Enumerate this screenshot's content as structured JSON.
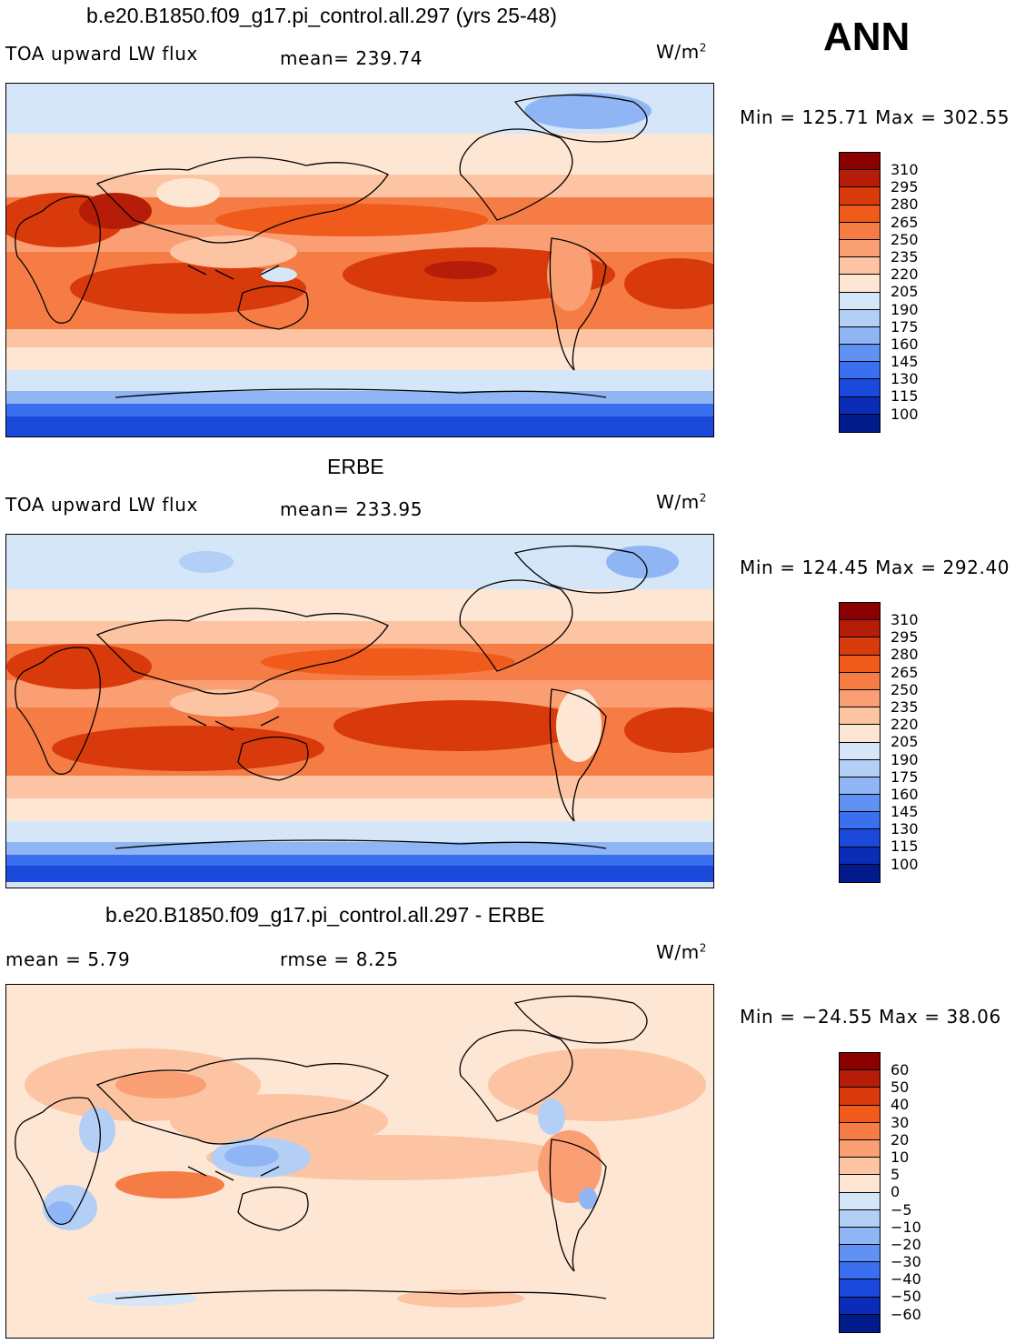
{
  "season": "ANN",
  "units_base": "W/m",
  "units_exp": "2",
  "panels": [
    {
      "title": "b.e20.B1850.f09_g17.pi_control.all.297 (yrs 25-48)",
      "left_label": "TOA upward LW flux",
      "stat_text": "mean=  239.74",
      "minmax": "Min = 125.71 Max = 302.55",
      "kind": "abs",
      "cb_labels": [
        "310",
        "295",
        "280",
        "265",
        "250",
        "235",
        "220",
        "205",
        "190",
        "175",
        "160",
        "145",
        "130",
        "115",
        "100"
      ]
    },
    {
      "title": "ERBE",
      "left_label": "TOA upward LW flux",
      "stat_text": "mean=  233.95",
      "minmax": "Min = 124.45 Max = 292.40",
      "kind": "abs",
      "cb_labels": [
        "310",
        "295",
        "280",
        "265",
        "250",
        "235",
        "220",
        "205",
        "190",
        "175",
        "160",
        "145",
        "130",
        "115",
        "100"
      ]
    },
    {
      "title": "b.e20.B1850.f09_g17.pi_control.all.297 - ERBE",
      "left_label": "mean =   5.79",
      "stat_text": "rmse =   8.25",
      "minmax": "Min = −24.55 Max =  38.06",
      "kind": "diff",
      "cb_labels": [
        "60",
        "50",
        "40",
        "30",
        "20",
        "10",
        "5",
        "0",
        "−5",
        "−10",
        "−20",
        "−30",
        "−40",
        "−50",
        "−60"
      ]
    }
  ],
  "colorscale": [
    "#8b0000",
    "#b51d08",
    "#d93a0c",
    "#f05a1a",
    "#f67c45",
    "#fa9f73",
    "#fcc4a2",
    "#fee6d4",
    "#d5e6f9",
    "#b3cff6",
    "#8fb5f4",
    "#5f92f3",
    "#3a6ff0",
    "#1b49dc",
    "#0a2cb6",
    "#021b8a"
  ],
  "colors": {
    "ocean_cold": "#1b49dc",
    "land_outline": "#000000"
  }
}
